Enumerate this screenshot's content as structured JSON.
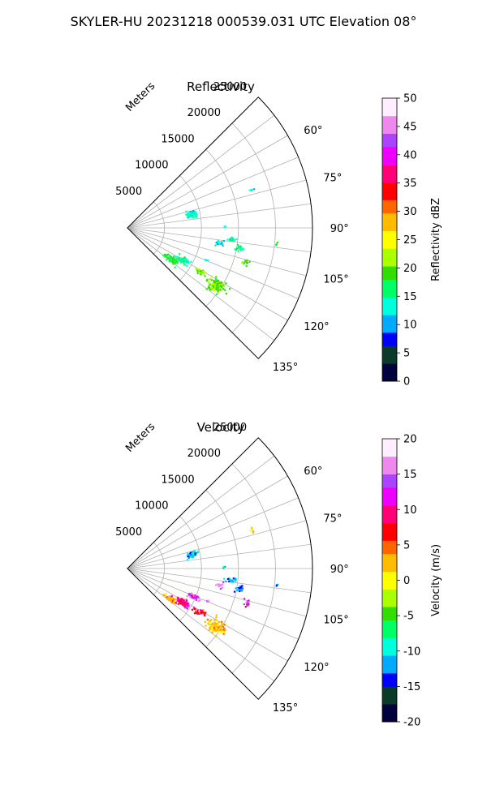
{
  "figure": {
    "title": "SKYLER-HU  20231218  000539.031 UTC Elevation 08°"
  },
  "chart_data": [
    {
      "type": "polar-sector",
      "title": "Reflectivity",
      "range_label": "Meters",
      "range_ticks": [
        5000,
        10000,
        15000,
        20000,
        25000
      ],
      "range_max": 25000,
      "azimuth_range": [
        45,
        135
      ],
      "azimuth_ticks": [
        60,
        75,
        90,
        105,
        120,
        135
      ],
      "azimuth_tick_labels": [
        "60°",
        "75°",
        "90°",
        "105°",
        "120°",
        "135°"
      ],
      "grid": true,
      "colorbar": {
        "label": "Reflectivity dBZ",
        "min": 0,
        "max": 50,
        "ticks": [
          0,
          5,
          10,
          15,
          20,
          25,
          30,
          35,
          40,
          45,
          50
        ],
        "stops": [
          "#00003c",
          "#0a3a2a",
          "#0000ff",
          "#00aaff",
          "#00ffdd",
          "#00ff66",
          "#33dd00",
          "#aaff00",
          "#ffff00",
          "#ffbb00",
          "#ff6600",
          "#ff0000",
          "#ff0077",
          "#ee00ff",
          "#aa44ff",
          "#ee88ee",
          "#ffeeff"
        ]
      },
      "echoes": [
        {
          "az": 72,
          "range": 17500,
          "value": 14,
          "spread_az": 1.0,
          "spread_r": 300,
          "count": 6
        },
        {
          "az": 77,
          "range": 8800,
          "value": 13,
          "spread_az": 2.5,
          "spread_r": 600,
          "count": 70
        },
        {
          "az": 89,
          "range": 13000,
          "value": 12,
          "spread_az": 0.5,
          "spread_r": 200,
          "count": 3
        },
        {
          "az": 96,
          "range": 14000,
          "value": 14,
          "spread_az": 1.0,
          "spread_r": 500,
          "count": 25
        },
        {
          "az": 99,
          "range": 12500,
          "value": 12,
          "spread_az": 1.5,
          "spread_r": 500,
          "count": 20
        },
        {
          "az": 100,
          "range": 15200,
          "value": 15,
          "spread_az": 1.5,
          "spread_r": 500,
          "count": 20
        },
        {
          "az": 96,
          "range": 20200,
          "value": 17,
          "spread_az": 0.6,
          "spread_r": 200,
          "count": 4
        },
        {
          "az": 106,
          "range": 16500,
          "value": 19,
          "spread_az": 1.5,
          "spread_r": 400,
          "count": 14
        },
        {
          "az": 125,
          "range": 7200,
          "value": 18,
          "spread_az": 3.0,
          "spread_r": 1000,
          "count": 90
        },
        {
          "az": 120,
          "range": 8500,
          "value": 15,
          "spread_az": 3.0,
          "spread_r": 900,
          "count": 60
        },
        {
          "az": 121,
          "range": 11200,
          "value": 20,
          "spread_az": 2.0,
          "spread_r": 800,
          "count": 30
        },
        {
          "az": 123,
          "range": 14200,
          "value": 20,
          "spread_az": 3.0,
          "spread_r": 1200,
          "count": 110
        },
        {
          "az": 112,
          "range": 11500,
          "value": 14,
          "spread_az": 0.8,
          "spread_r": 200,
          "count": 4
        }
      ]
    },
    {
      "type": "polar-sector",
      "title": "Velocity",
      "range_label": "Meters",
      "range_ticks": [
        5000,
        10000,
        15000,
        20000,
        25000
      ],
      "range_max": 25000,
      "azimuth_range": [
        45,
        135
      ],
      "azimuth_ticks": [
        60,
        75,
        90,
        105,
        120,
        135
      ],
      "azimuth_tick_labels": [
        "60°",
        "75°",
        "90°",
        "105°",
        "120°",
        "135°"
      ],
      "grid": true,
      "colorbar": {
        "label": "Velocity (m/s)",
        "min": -20,
        "max": 20,
        "ticks": [
          -20,
          -15,
          -10,
          -5,
          0,
          5,
          10,
          15,
          20
        ],
        "stops": [
          "#00003c",
          "#0a3a2a",
          "#0000ff",
          "#00aaff",
          "#00ffdd",
          "#00ff66",
          "#33dd00",
          "#aaff00",
          "#ffff00",
          "#ffbb00",
          "#ff6600",
          "#ff0000",
          "#ff0077",
          "#ee00ff",
          "#aa44ff",
          "#ee88ee",
          "#ffeeff"
        ]
      },
      "echoes": [
        {
          "az": 72,
          "range": 17500,
          "value": 2,
          "spread_az": 1.0,
          "spread_r": 300,
          "count": 6
        },
        {
          "az": 77,
          "range": 8800,
          "value": -11,
          "spread_az": 2.5,
          "spread_r": 600,
          "count": 70
        },
        {
          "az": 89,
          "range": 13000,
          "value": -11,
          "spread_az": 0.5,
          "spread_r": 200,
          "count": 3
        },
        {
          "az": 96,
          "range": 14000,
          "value": -11,
          "spread_az": 1.0,
          "spread_r": 500,
          "count": 25
        },
        {
          "az": 100,
          "range": 12500,
          "value": 17,
          "spread_az": 1.5,
          "spread_r": 500,
          "count": 20
        },
        {
          "az": 100,
          "range": 15200,
          "value": -13,
          "spread_az": 1.5,
          "spread_r": 500,
          "count": 20
        },
        {
          "az": 96,
          "range": 20200,
          "value": -11,
          "spread_az": 0.6,
          "spread_r": 200,
          "count": 4
        },
        {
          "az": 106,
          "range": 16500,
          "value": 12,
          "spread_az": 1.5,
          "spread_r": 400,
          "count": 14
        },
        {
          "az": 125,
          "range": 7000,
          "value": 3,
          "spread_az": 2.5,
          "spread_r": 900,
          "count": 60
        },
        {
          "az": 121,
          "range": 8600,
          "value": 10,
          "spread_az": 3.0,
          "spread_r": 900,
          "count": 80
        },
        {
          "az": 113,
          "range": 9600,
          "value": 14,
          "spread_az": 2.0,
          "spread_r": 700,
          "count": 40
        },
        {
          "az": 121,
          "range": 11200,
          "value": 8,
          "spread_az": 2.0,
          "spread_r": 800,
          "count": 30
        },
        {
          "az": 123,
          "range": 14200,
          "value": 2,
          "spread_az": 3.0,
          "spread_r": 1200,
          "count": 110
        },
        {
          "az": 112,
          "range": 11500,
          "value": 14,
          "spread_az": 0.8,
          "spread_r": 200,
          "count": 4
        }
      ]
    }
  ]
}
